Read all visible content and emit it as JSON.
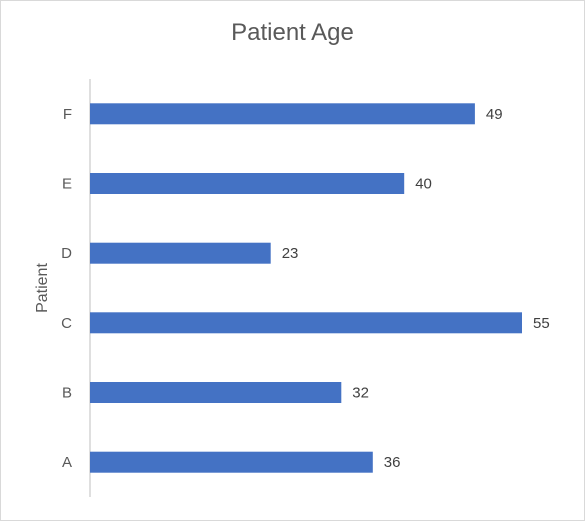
{
  "chart_data": {
    "type": "bar",
    "orientation": "horizontal",
    "title": "Patient Age",
    "xlabel": "",
    "ylabel": "Patient",
    "categories": [
      "A",
      "B",
      "C",
      "D",
      "E",
      "F"
    ],
    "values": [
      36,
      32,
      55,
      23,
      40,
      49
    ],
    "xlim": [
      0,
      56
    ],
    "grid": false,
    "legend": "none",
    "data_labels": true,
    "bar_color": "#4472C4"
  }
}
